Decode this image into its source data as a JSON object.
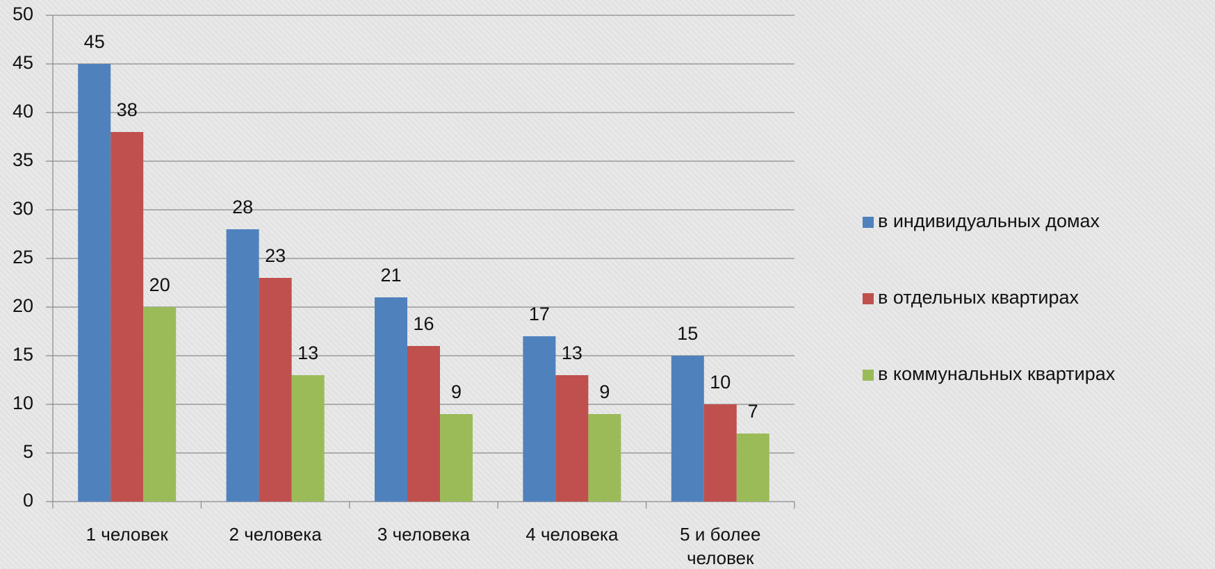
{
  "chart_data": {
    "type": "bar",
    "categories": [
      "1 человек",
      "2 человека",
      "3 человека",
      "4 человека",
      "5 и более человек"
    ],
    "series": [
      {
        "name": "в индивидуальных домах",
        "color": "#4f81bd",
        "values": [
          45,
          28,
          21,
          17,
          15
        ]
      },
      {
        "name": "в отдельных квартирах",
        "color": "#c0504d",
        "values": [
          38,
          23,
          16,
          13,
          10
        ]
      },
      {
        "name": "в коммунальных квартирах",
        "color": "#9bbb59",
        "values": [
          20,
          13,
          9,
          9,
          7
        ]
      }
    ],
    "ylim": [
      0,
      50
    ],
    "yticks": [
      0,
      5,
      10,
      15,
      20,
      25,
      30,
      35,
      40,
      45,
      50
    ],
    "grid": true,
    "legend": "right"
  }
}
